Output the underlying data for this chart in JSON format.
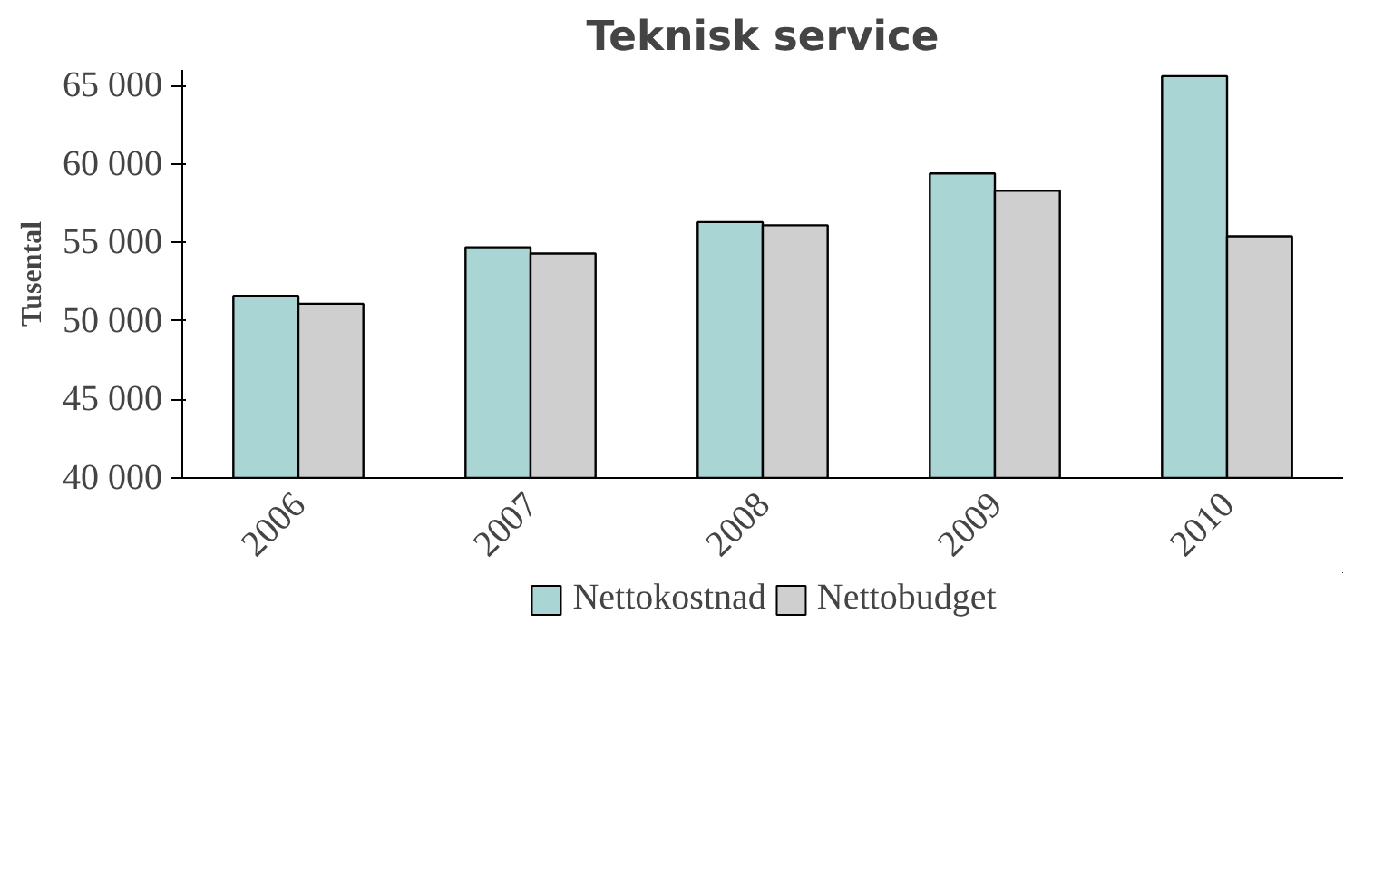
{
  "chart_data": {
    "type": "bar",
    "title": "Teknisk service",
    "ylabel": "Tusental",
    "categories": [
      "2006",
      "2007",
      "2008",
      "2009",
      "2010"
    ],
    "series": [
      {
        "name": "Nettokostnad",
        "color": "#a9d5d5",
        "values": [
          51600,
          54700,
          56300,
          59400,
          65600
        ]
      },
      {
        "name": "Nettobudget",
        "color": "#cfcfcf",
        "values": [
          51100,
          54300,
          56100,
          58300,
          55400
        ]
      }
    ],
    "ylim": [
      40000,
      66000
    ],
    "yticks": [
      {
        "value": 40000,
        "label": "40 000"
      },
      {
        "value": 45000,
        "label": "45 000"
      },
      {
        "value": 50000,
        "label": "50 000"
      },
      {
        "value": 55000,
        "label": "55 000"
      },
      {
        "value": 60000,
        "label": "60 000"
      },
      {
        "value": 65000,
        "label": "65 000"
      }
    ],
    "grid": false,
    "legend": "bottom"
  }
}
